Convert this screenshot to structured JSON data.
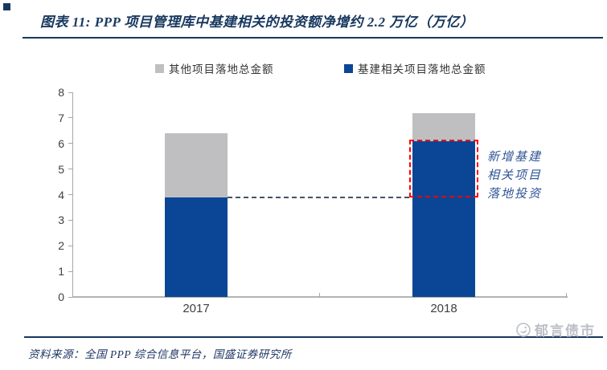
{
  "header": {
    "title": "图表 11:  PPP 项目管理库中基建相关的投资额净增约 2.2 万亿（万亿）"
  },
  "legend": {
    "items": [
      {
        "label": "其他项目落地总金额",
        "color": "#bfbfc1"
      },
      {
        "label": "基建相关项目落地总金额",
        "color": "#0b4696"
      }
    ]
  },
  "chart_data": {
    "type": "bar",
    "stacked": true,
    "categories": [
      "2017",
      "2018"
    ],
    "series": [
      {
        "name": "基建相关项目落地总金额",
        "color": "#0b4696",
        "values": [
          3.9,
          6.1
        ]
      },
      {
        "name": "其他项目落地总金额",
        "color": "#bfbfc1",
        "values": [
          2.5,
          1.1
        ]
      }
    ],
    "totals": [
      6.4,
      7.2
    ],
    "title": "PPP 项目管理库中基建相关的投资额净增约 2.2 万亿（万亿）",
    "xlabel": "",
    "ylabel": "",
    "ylim": [
      0,
      8
    ],
    "yticks": [
      0,
      1,
      2,
      3,
      4,
      5,
      6,
      7,
      8
    ],
    "grid": false,
    "legend_position": "top",
    "reference_line": {
      "value": 3.9,
      "style": "dashed",
      "color": "#44546a"
    },
    "highlight_box": {
      "category_index": 1,
      "from": 3.9,
      "to": 6.1,
      "style": "dashed",
      "color": "#ff0000"
    },
    "annotation": {
      "lines": [
        "新增基建",
        "相关项目",
        "落地投资"
      ],
      "color": "#2f5496"
    }
  },
  "footer": {
    "watermark": "郁言债市",
    "source": "资料来源：全国 PPP 综合信息平台，国盛证券研究所"
  }
}
